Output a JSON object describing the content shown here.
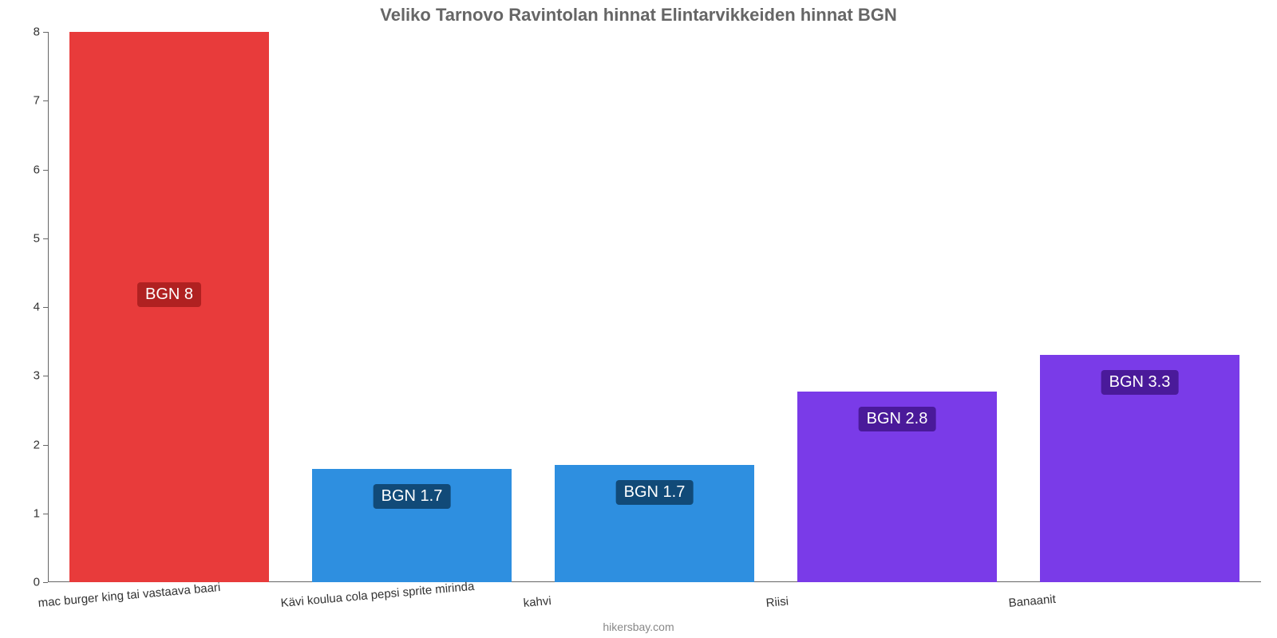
{
  "chart": {
    "type": "bar",
    "title": "Veliko Tarnovo Ravintolan hinnat Elintarvikkeiden hinnat BGN",
    "title_fontsize": 22,
    "title_color": "#666666",
    "background_color": "#ffffff",
    "attribution": "hikersbay.com",
    "y": {
      "min": 0,
      "max": 8,
      "ticks": [
        0,
        1,
        2,
        3,
        4,
        5,
        6,
        7,
        8
      ],
      "tick_fontsize": 15,
      "tick_color": "#333333"
    },
    "x": {
      "label_fontsize": 15,
      "label_color": "#333333",
      "label_rotation_deg": -5
    },
    "bars": [
      {
        "category": "mac burger king tai vastaava baari",
        "value": 8.0,
        "value_label": "BGN 8",
        "bar_color": "#e83b3b",
        "label_bg": "#b02121"
      },
      {
        "category": "Kävi koulua cola pepsi sprite mirinda",
        "value": 1.65,
        "value_label": "BGN 1.7",
        "bar_color": "#2e8fe0",
        "label_bg": "#114a78"
      },
      {
        "category": "kahvi",
        "value": 1.7,
        "value_label": "BGN 1.7",
        "bar_color": "#2e8fe0",
        "label_bg": "#114a78"
      },
      {
        "category": "Riisi",
        "value": 2.77,
        "value_label": "BGN 2.8",
        "bar_color": "#7a3be8",
        "label_bg": "#4a1a9a"
      },
      {
        "category": "Banaanit",
        "value": 3.3,
        "value_label": "BGN 3.3",
        "bar_color": "#7a3be8",
        "label_bg": "#4a1a9a"
      }
    ],
    "bar_width_ratio": 0.82,
    "label_fontsize": 20
  }
}
